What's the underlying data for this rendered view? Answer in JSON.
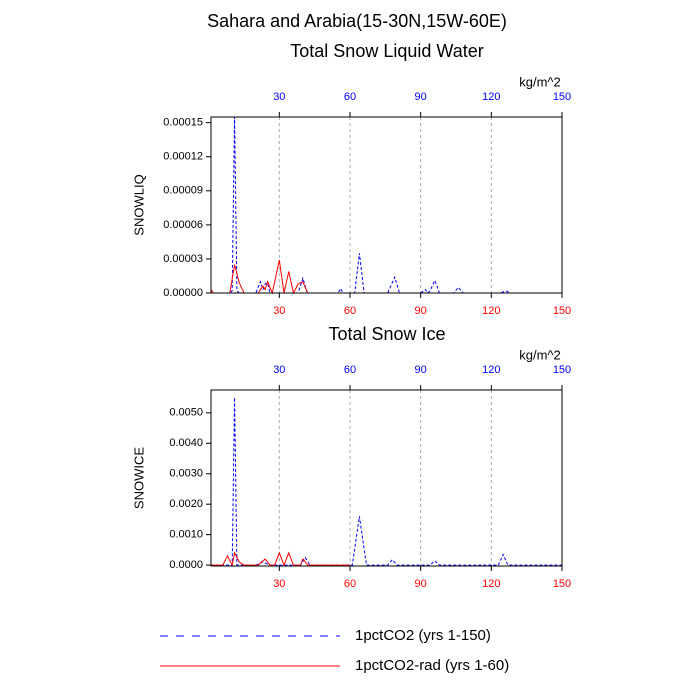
{
  "title": "Sahara and Arabia(15-30N,15W-60E)",
  "chart_data": [
    {
      "type": "line",
      "title": "Total Snow Liquid Water",
      "ylabel": "SNOWLIQ",
      "x2label": "kg/m^2",
      "xlim": [
        1,
        150
      ],
      "xticks": [
        30,
        60,
        90,
        120,
        150
      ],
      "xtick_color": "#ff0000",
      "x2ticks": [
        30,
        60,
        90,
        120,
        150
      ],
      "x2tick_color": "#0000ff",
      "grid": true,
      "ylim": [
        0,
        0.000155
      ],
      "yticks": [
        {
          "value": 0,
          "label": "0.00000"
        },
        {
          "value": 3e-05,
          "label": "0.00003"
        },
        {
          "value": 6e-05,
          "label": "0.00006"
        },
        {
          "value": 9e-05,
          "label": "0.00009"
        },
        {
          "value": 0.00012,
          "label": "0.00012"
        },
        {
          "value": 0.00015,
          "label": "0.00015"
        }
      ],
      "series": [
        {
          "name": "1pctCO2 (yrs 1-150)",
          "color": "#0000ff",
          "dash": true,
          "x": [
            1,
            9,
            10,
            11,
            12,
            13,
            20,
            22,
            23,
            24,
            25,
            26,
            38,
            40,
            41,
            42,
            55,
            56,
            57,
            62,
            64,
            66,
            76,
            79,
            81,
            90,
            92,
            93,
            94,
            96,
            98,
            104,
            106,
            108,
            124,
            126,
            128,
            150
          ],
          "values": [
            0,
            0,
            2e-06,
            0.000155,
            2e-06,
            0,
            0,
            1e-05,
            3e-06,
            8e-06,
            9e-06,
            0,
            0,
            1.3e-05,
            6e-06,
            0,
            0,
            4e-06,
            0,
            0,
            3.5e-05,
            0,
            0,
            1.4e-05,
            0,
            0,
            3e-06,
            0,
            2e-06,
            1.1e-05,
            0,
            0,
            5e-06,
            0,
            0,
            2e-06,
            0,
            0
          ]
        },
        {
          "name": "1pctCO2-rad (yrs 1-60)",
          "color": "#ff0000",
          "dash": false,
          "x": [
            1,
            2,
            4,
            9,
            11,
            13,
            15,
            21,
            23,
            24,
            25,
            27,
            30,
            32,
            34,
            36,
            38,
            40,
            42,
            60
          ],
          "values": [
            3e-06,
            0,
            0,
            0,
            2.5e-05,
            9e-06,
            0,
            0,
            6e-06,
            3e-06,
            1e-05,
            0,
            2.9e-05,
            0,
            1.9e-05,
            0,
            8e-06,
            1e-05,
            0,
            0
          ]
        }
      ]
    },
    {
      "type": "line",
      "title": "Total Snow Ice",
      "ylabel": "SNOWICE",
      "x2label": "kg/m^2",
      "xlim": [
        1,
        150
      ],
      "xticks": [
        30,
        60,
        90,
        120,
        150
      ],
      "xtick_color": "#ff0000",
      "x2ticks": [
        30,
        60,
        90,
        120,
        150
      ],
      "x2tick_color": "#0000ff",
      "grid": true,
      "ylim": [
        -3e-05,
        0.00575
      ],
      "yticks": [
        {
          "value": 0,
          "label": "0.0000"
        },
        {
          "value": 0.001,
          "label": "0.0010"
        },
        {
          "value": 0.002,
          "label": "0.0020"
        },
        {
          "value": 0.003,
          "label": "0.0030"
        },
        {
          "value": 0.004,
          "label": "0.0040"
        },
        {
          "value": 0.005,
          "label": "0.0050"
        }
      ],
      "series": [
        {
          "color": "#0000ff",
          "dash": true,
          "x": [
            1,
            10,
            11,
            12,
            20,
            23,
            26,
            39,
            41,
            43,
            61,
            64,
            67,
            76,
            78,
            80,
            94,
            96,
            98,
            123,
            125,
            127,
            150
          ],
          "values": [
            0,
            0,
            0.0055,
            0,
            0,
            0.0001,
            0,
            0,
            0.00025,
            0,
            0,
            0.0016,
            0,
            0,
            0.00018,
            0,
            0,
            0.00014,
            0,
            0,
            0.00035,
            0,
            0
          ]
        },
        {
          "color": "#ff0000",
          "dash": false,
          "x": [
            1,
            6,
            8,
            10,
            11,
            13,
            15,
            21,
            24,
            26,
            28,
            30,
            32,
            34,
            36,
            39,
            40,
            42,
            60
          ],
          "values": [
            0,
            0,
            0.0003,
            0,
            0.0004,
            0.0001,
            0,
            0,
            0.0002,
            0,
            0,
            0.0004,
            0,
            0.0004,
            0,
            0,
            0.0002,
            0,
            0
          ]
        }
      ]
    }
  ]
}
